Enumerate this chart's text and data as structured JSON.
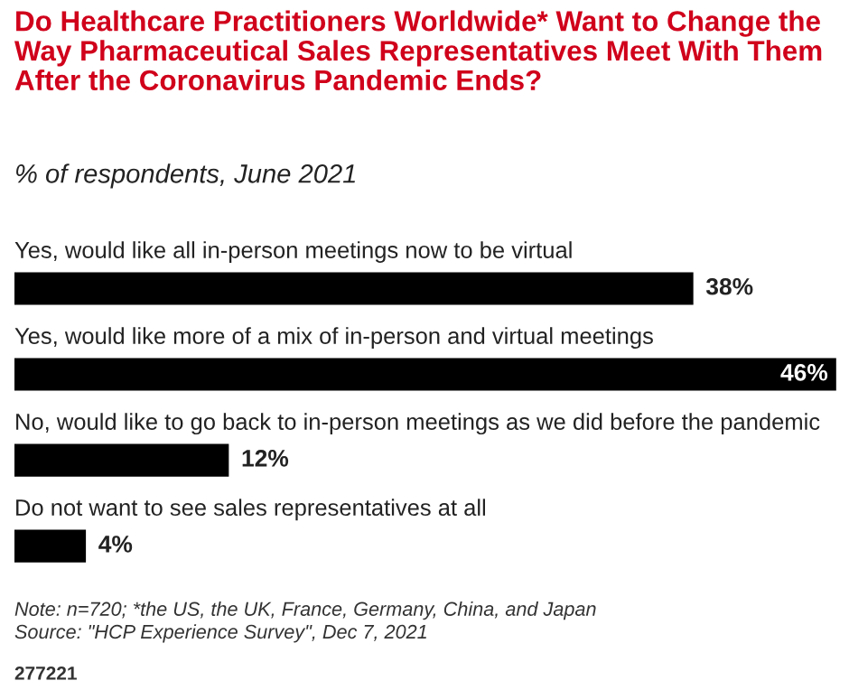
{
  "chart_data": {
    "type": "bar",
    "orientation": "horizontal",
    "title": "Do Healthcare Practitioners Worldwide* Want to Change the Way Pharmaceutical Sales Representatives Meet With Them After the Coronavirus Pandemic Ends?",
    "subtitle": "% of respondents, June 2021",
    "categories": [
      "Yes, would like all in-person meetings now to be virtual",
      "Yes, would like more of a mix of in-person and virtual meetings",
      "No, would like to go back to in-person meetings as we did before the pandemic",
      "Do not want to see sales representatives at all"
    ],
    "values": [
      38,
      46,
      12,
      4
    ],
    "value_labels": [
      "38%",
      "46%",
      "12%",
      "4%"
    ],
    "color": "#000000",
    "annotations": [
      "Note: n=720; *the US, the UK, France, Germany, China, and Japan",
      "Source: \"HCP Experience Survey\", Dec 7, 2021",
      "277221"
    ]
  }
}
